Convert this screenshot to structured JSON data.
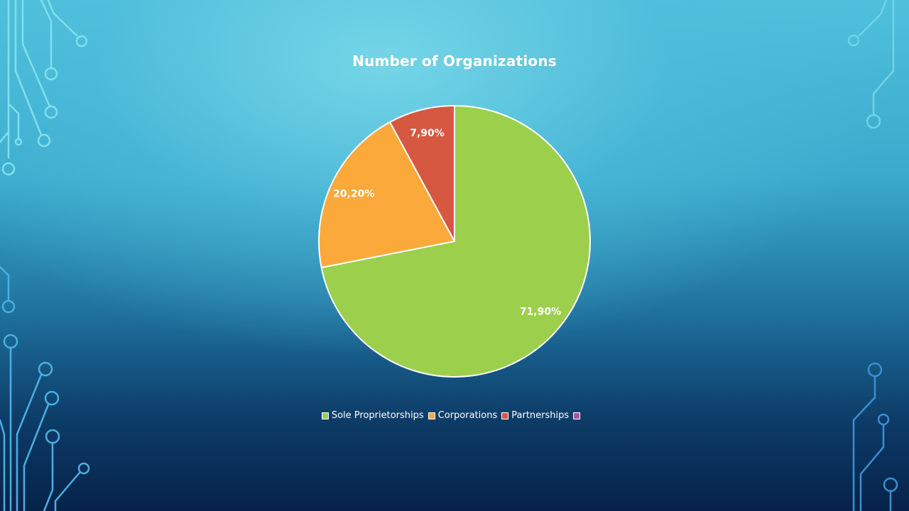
{
  "chart_data": {
    "type": "pie",
    "title": "Number of Organizations",
    "categories": [
      "Sole Proprietorships",
      "Corporations",
      "Partnerships",
      ""
    ],
    "values": [
      71.9,
      20.2,
      7.9,
      0
    ],
    "data_labels": [
      "71,90%",
      "20,20%",
      "7,90%",
      ""
    ],
    "colors": [
      "#9ccf4c",
      "#fba93a",
      "#d65841",
      "#b0509c"
    ],
    "legend_position": "bottom",
    "start_angle_deg": 0,
    "direction": "clockwise"
  }
}
